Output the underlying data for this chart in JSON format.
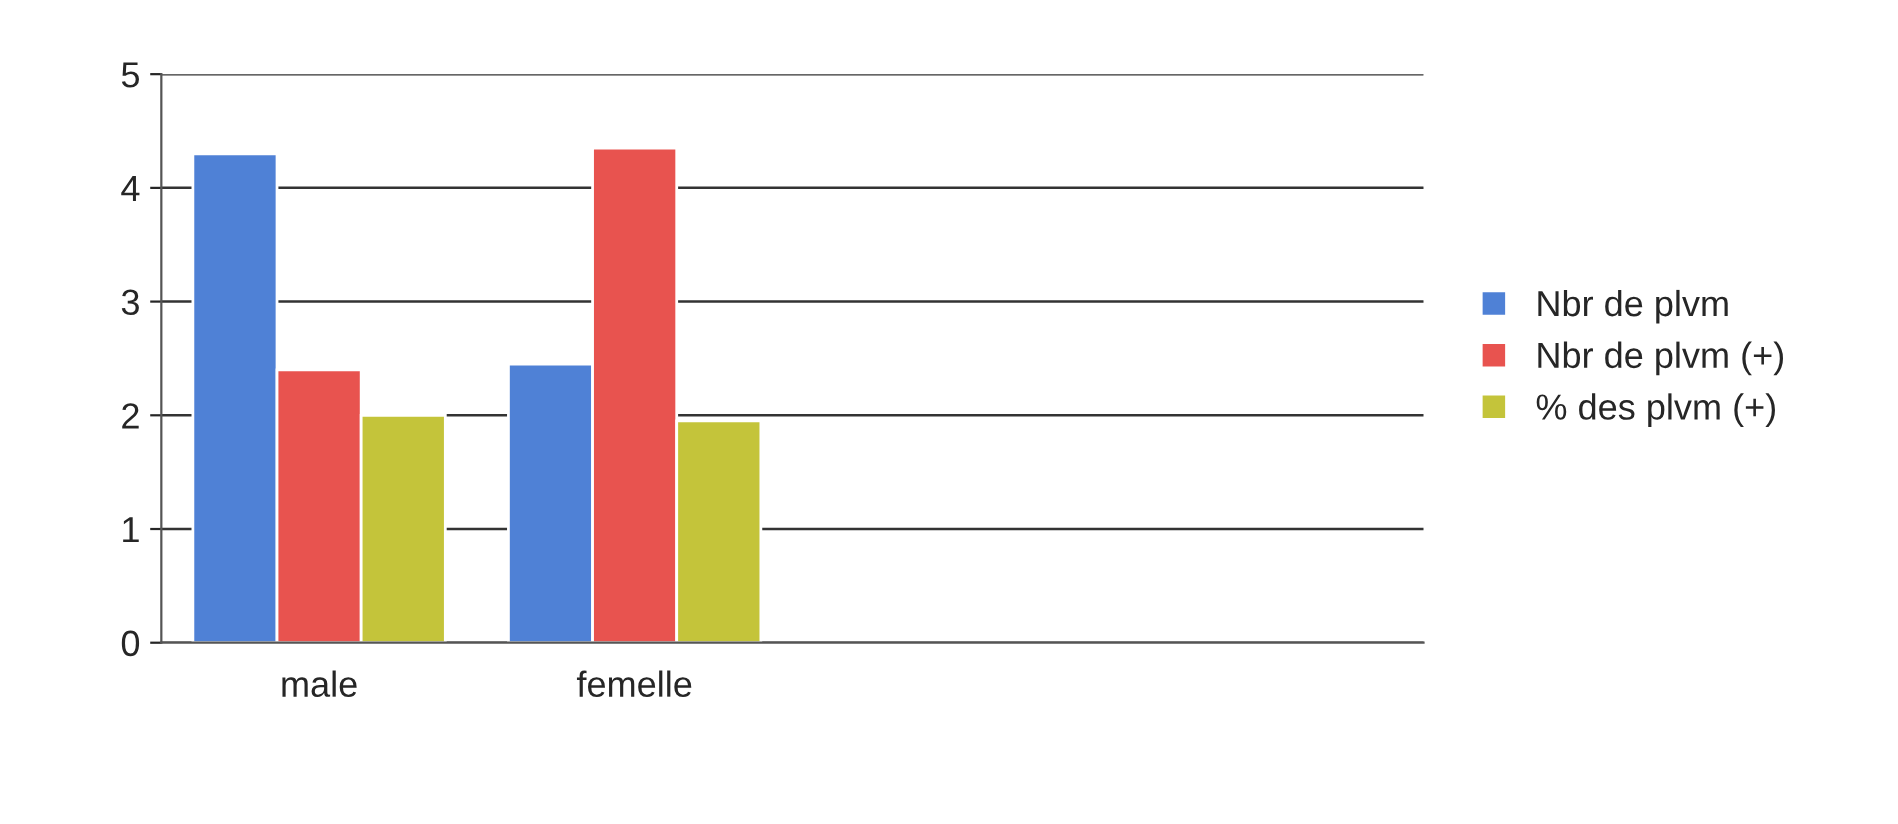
{
  "chart_data": {
    "type": "bar",
    "categories": [
      "male",
      "femelle",
      null,
      null
    ],
    "series": [
      {
        "name": "Nbr de plvm",
        "color": "#4f81d6",
        "values": [
          4.3,
          2.45,
          null,
          null
        ]
      },
      {
        "name": "Nbr de plvm (+)",
        "color": "#e8534f",
        "values": [
          2.4,
          4.35,
          null,
          null
        ]
      },
      {
        "name": "% des plvm (+)",
        "color": "#c4c43a",
        "values": [
          2.0,
          1.95,
          null,
          null
        ]
      }
    ],
    "ylim": [
      0,
      5
    ],
    "yticks": [
      0,
      1,
      2,
      3,
      4,
      5
    ],
    "grid": "y",
    "legend": "right"
  }
}
